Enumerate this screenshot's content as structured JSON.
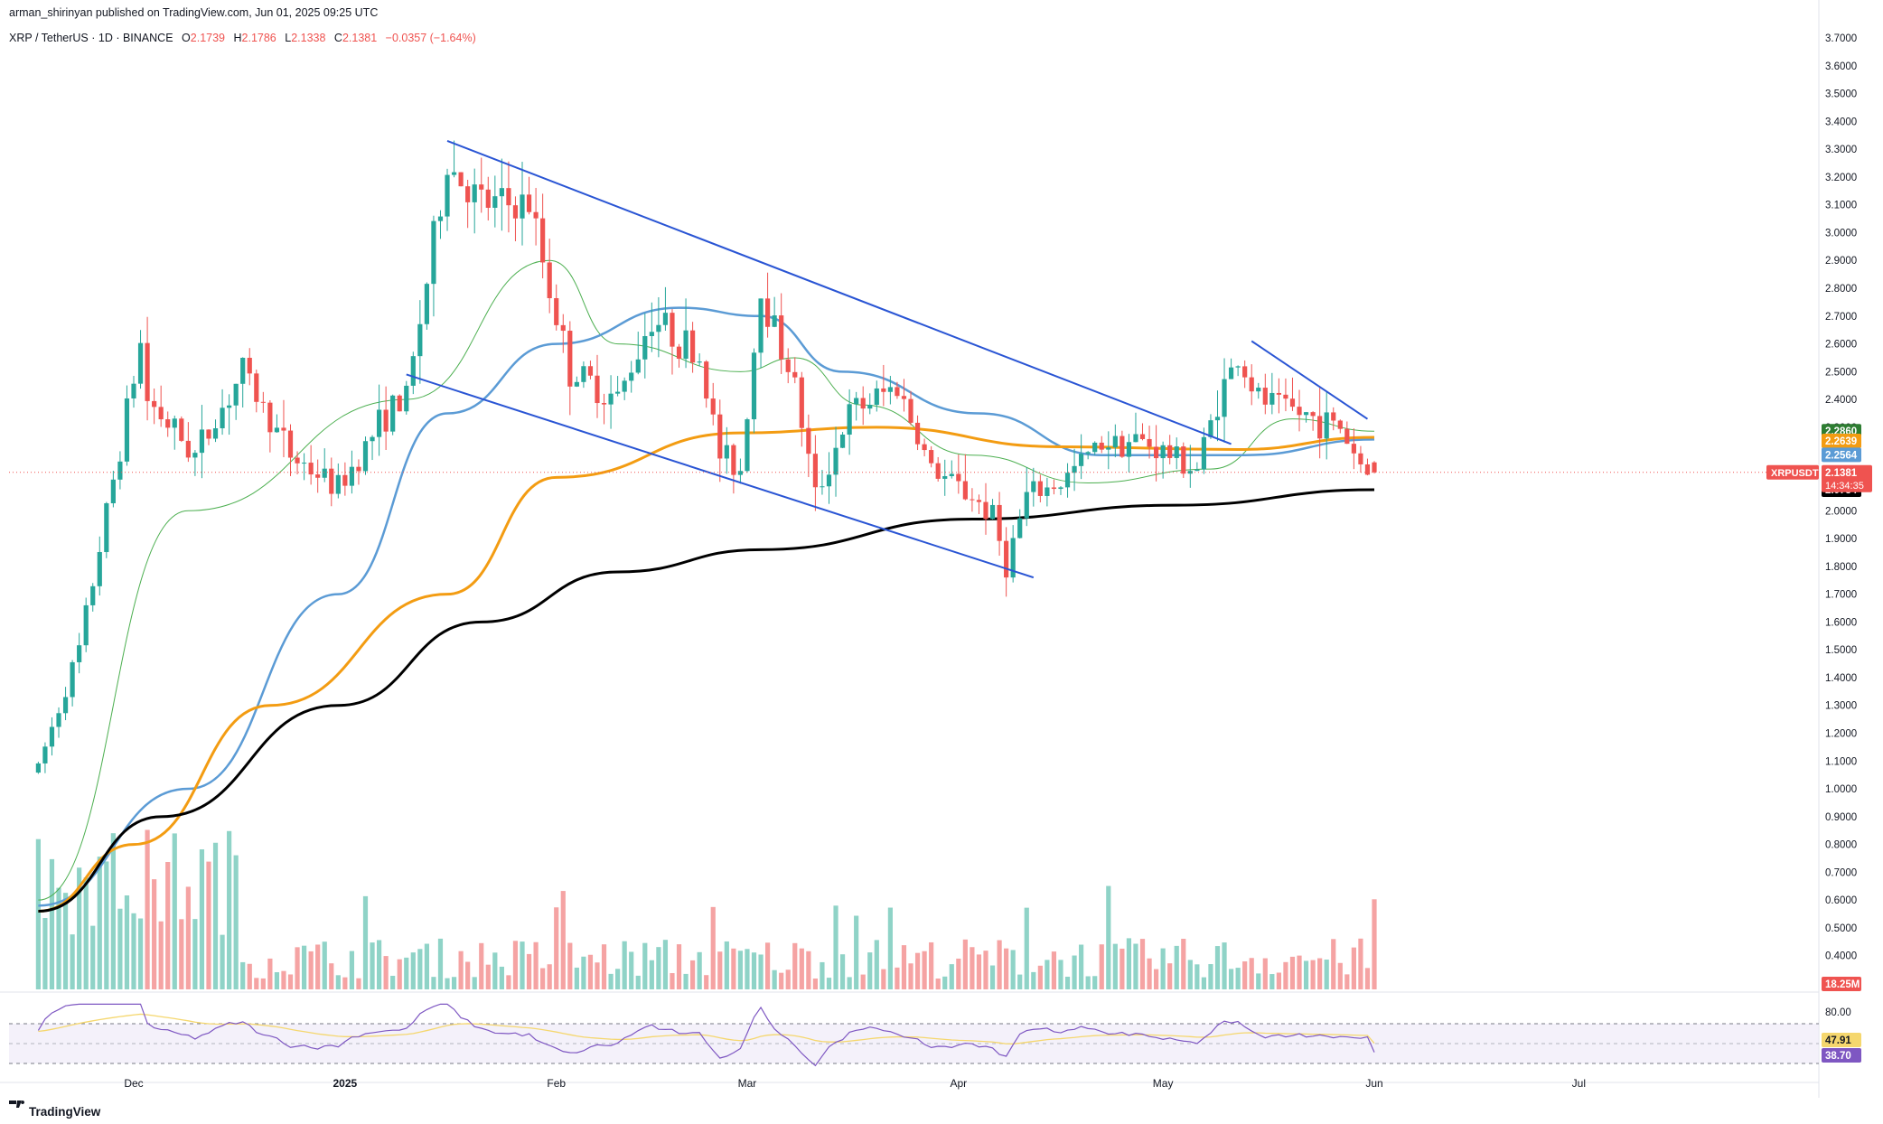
{
  "header": {
    "publisher": "arman_shirinyan published on TradingView.com, Jun 01, 2025 09:25 UTC",
    "symbol_line": "XRP / TetherUS · 1D · BINANCE",
    "o_label": "O",
    "o_value": "2.1739",
    "h_label": "H",
    "h_value": "2.1786",
    "l_label": "L",
    "l_value": "2.1338",
    "c_label": "C",
    "c_value": "2.1381",
    "change": "−0.0357 (−1.64%)"
  },
  "footer": {
    "logo_text": "TradingView"
  },
  "badges": {
    "symbol": "XRPUSDT",
    "price": "2.1381",
    "countdown": "14:34:35",
    "ema20": "2.2860",
    "ema100": "2.2639",
    "ema50": "2.2564",
    "ema200": "2.0754",
    "volume": "18.25M",
    "rsi_ma": "47.91",
    "rsi": "38.70"
  },
  "colors": {
    "up": "#26a69a",
    "down": "#ef5350",
    "vol_up": "#8fd3c7",
    "vol_down": "#f5a3a3",
    "ema20": "#4caf50",
    "ema50": "#5b9bd5",
    "ema100": "#f39c12",
    "ema200": "#000000",
    "trend": "#2a55d4",
    "rsi": "#7e57c2",
    "rsi_ma": "#f5d76e",
    "price_line": "#ef5350"
  },
  "chart_data": {
    "type": "candlestick",
    "symbol": "XRP / TetherUS",
    "interval": "1D",
    "exchange": "BINANCE",
    "x_ticks": [
      "Dec",
      "2025",
      "Feb",
      "Mar",
      "Apr",
      "May",
      "Jun",
      "Jul"
    ],
    "y_ticks": [
      "3.7000",
      "3.6000",
      "3.5000",
      "3.4000",
      "3.3000",
      "3.2000",
      "3.1000",
      "3.0000",
      "2.9000",
      "2.8000",
      "2.7000",
      "2.6000",
      "2.5000",
      "2.4000",
      "2.3000",
      "2.2000",
      "2.1000",
      "2.0000",
      "1.9000",
      "1.8000",
      "1.7000",
      "1.6000",
      "1.5000",
      "1.4000",
      "1.3000",
      "1.2000",
      "1.1000",
      "1.0000",
      "0.9000",
      "0.8000",
      "0.7000",
      "0.6000",
      "0.5000",
      "0.4000"
    ],
    "ylim": [
      0.35,
      3.72
    ],
    "rsi_ticks": [
      "80.00"
    ],
    "rsi_levels": [
      70,
      30
    ],
    "last": {
      "open": 2.1739,
      "high": 2.1786,
      "low": 2.1338,
      "close": 2.1381
    },
    "keypoints": [
      [
        "2024-11-17",
        1.08
      ],
      [
        "2024-11-23",
        1.5
      ],
      [
        "2024-12-02",
        2.6
      ],
      [
        "2024-12-03",
        2.4
      ],
      [
        "2024-12-10",
        2.2
      ],
      [
        "2024-12-17",
        2.5
      ],
      [
        "2024-12-24",
        2.2
      ],
      [
        "2024-12-31",
        2.08
      ],
      [
        "2025-01-07",
        2.35
      ],
      [
        "2025-01-10",
        2.4
      ],
      [
        "2025-01-16",
        3.25
      ],
      [
        "2025-01-21",
        3.1
      ],
      [
        "2025-01-28",
        3.1
      ],
      [
        "2025-02-02",
        2.6
      ],
      [
        "2025-02-03",
        2.5
      ],
      [
        "2025-02-10",
        2.4
      ],
      [
        "2025-02-15",
        2.7
      ],
      [
        "2025-02-22",
        2.55
      ],
      [
        "2025-02-25",
        2.2
      ],
      [
        "2025-02-28",
        2.15
      ],
      [
        "2025-03-03",
        2.8
      ],
      [
        "2025-03-08",
        2.45
      ],
      [
        "2025-03-11",
        2.05
      ],
      [
        "2025-03-16",
        2.35
      ],
      [
        "2025-03-23",
        2.45
      ],
      [
        "2025-03-28",
        2.15
      ],
      [
        "2025-04-03",
        2.05
      ],
      [
        "2025-04-06",
        1.98
      ],
      [
        "2025-04-08",
        1.8
      ],
      [
        "2025-04-11",
        2.05
      ],
      [
        "2025-04-16",
        2.1
      ],
      [
        "2025-04-22",
        2.25
      ],
      [
        "2025-04-28",
        2.25
      ],
      [
        "2025-05-06",
        2.15
      ],
      [
        "2025-05-09",
        2.4
      ],
      [
        "2025-05-12",
        2.55
      ],
      [
        "2025-05-15",
        2.4
      ],
      [
        "2025-05-21",
        2.35
      ],
      [
        "2025-05-27",
        2.3
      ],
      [
        "2025-05-30",
        2.17
      ],
      [
        "2025-06-01",
        2.1381
      ]
    ],
    "moving_averages": [
      {
        "period": 20,
        "points": [
          [
            "2024-11-17",
            0.6
          ],
          [
            "2024-12-09",
            2.0
          ],
          [
            "2025-01-10",
            2.4
          ],
          [
            "2025-01-31",
            2.9
          ],
          [
            "2025-02-10",
            2.6
          ],
          [
            "2025-02-28",
            2.5
          ],
          [
            "2025-03-08",
            2.55
          ],
          [
            "2025-03-18",
            2.38
          ],
          [
            "2025-04-03",
            2.2
          ],
          [
            "2025-04-20",
            2.1
          ],
          [
            "2025-05-08",
            2.15
          ],
          [
            "2025-05-20",
            2.33
          ],
          [
            "2025-06-01",
            2.286
          ]
        ]
      },
      {
        "period": 50,
        "points": [
          [
            "2024-11-17",
            0.58
          ],
          [
            "2024-12-09",
            1.0
          ],
          [
            "2024-12-31",
            1.7
          ],
          [
            "2025-01-16",
            2.35
          ],
          [
            "2025-02-01",
            2.6
          ],
          [
            "2025-02-19",
            2.73
          ],
          [
            "2025-03-03",
            2.7
          ],
          [
            "2025-03-15",
            2.5
          ],
          [
            "2025-04-04",
            2.35
          ],
          [
            "2025-04-22",
            2.2
          ],
          [
            "2025-05-13",
            2.2
          ],
          [
            "2025-06-01",
            2.2564
          ]
        ]
      },
      {
        "period": 100,
        "points": [
          [
            "2024-11-17",
            0.56
          ],
          [
            "2024-12-01",
            0.8
          ],
          [
            "2024-12-21",
            1.3
          ],
          [
            "2025-01-16",
            1.7
          ],
          [
            "2025-02-01",
            2.12
          ],
          [
            "2025-02-28",
            2.28
          ],
          [
            "2025-03-20",
            2.3
          ],
          [
            "2025-04-16",
            2.23
          ],
          [
            "2025-05-12",
            2.22
          ],
          [
            "2025-06-01",
            2.2639
          ]
        ]
      },
      {
        "period": 200,
        "points": [
          [
            "2024-11-17",
            0.56
          ],
          [
            "2024-12-05",
            0.9
          ],
          [
            "2024-12-31",
            1.3
          ],
          [
            "2025-01-21",
            1.6
          ],
          [
            "2025-02-10",
            1.78
          ],
          [
            "2025-03-03",
            1.86
          ],
          [
            "2025-04-03",
            1.97
          ],
          [
            "2025-05-03",
            2.02
          ],
          [
            "2025-06-01",
            2.0754
          ]
        ]
      }
    ],
    "trendlines": [
      {
        "from": [
          "2025-01-16",
          3.33
        ],
        "to": [
          "2025-05-11",
          2.24
        ]
      },
      {
        "from": [
          "2025-01-10",
          2.49
        ],
        "to": [
          "2025-04-12",
          1.76
        ]
      },
      {
        "from": [
          "2025-05-14",
          2.61
        ],
        "to": [
          "2025-05-31",
          2.33
        ]
      }
    ],
    "volume_last": "18.25M",
    "rsi_last": 38.7,
    "rsi_ma_last": 47.91
  }
}
